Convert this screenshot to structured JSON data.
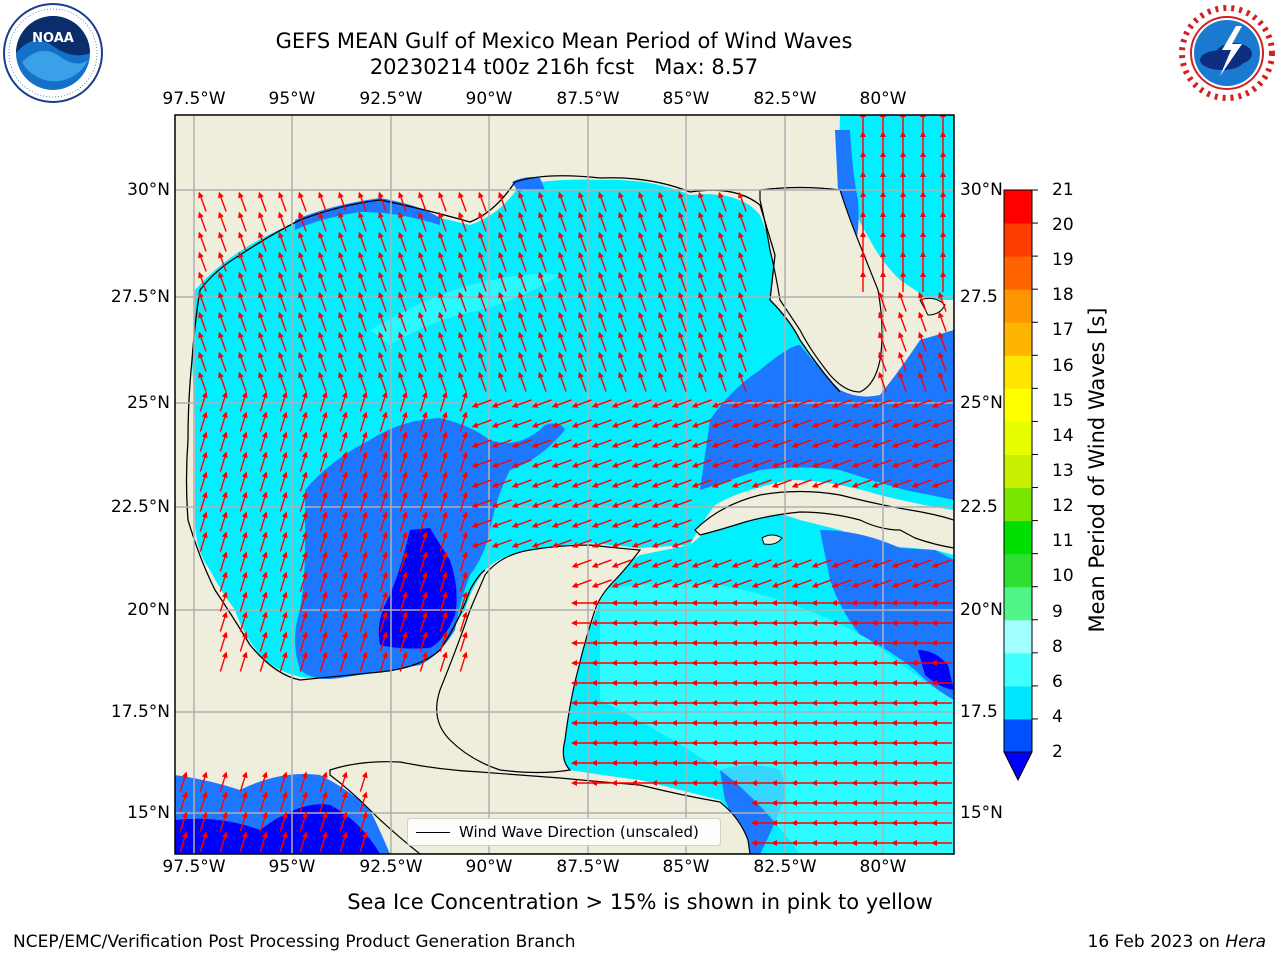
{
  "header": {
    "title_line1": "GEFS MEAN Gulf of Mexico Mean Period of Wind Waves",
    "title_line2": "20230214 t00z 216h fcst   Max: 8.57"
  },
  "logos": {
    "noaa_text": "NOAA",
    "noaa_ring_text": "NATIONAL OCEANIC AND ATMOSPHERIC ADMINISTRATION · U.S. DEPARTMENT OF COMMERCE",
    "nws_ring_text": "NATIONAL WEATHER SERVICE"
  },
  "map": {
    "lon_ticks": [
      "97.5°W",
      "95°W",
      "92.5°W",
      "90°W",
      "87.5°W",
      "85°W",
      "82.5°W",
      "80°W"
    ],
    "lat_ticks_left": [
      "30°N",
      "27.5°N",
      "25°N",
      "22.5°N",
      "20°N",
      "17.5°N",
      "15°N"
    ],
    "lat_ticks_right": [
      "30°N",
      "27.5",
      "25°N",
      "22.5",
      "20°N",
      "17.5",
      "15°N"
    ],
    "legend_label": "Wind Wave Direction (unscaled)",
    "colors": {
      "land": "#efeddc",
      "grid": "#b0b0b0",
      "arrow": "#ff0000",
      "coast": "#000000"
    }
  },
  "colorbar": {
    "label": "Mean Period of Wind Waves [s]",
    "ticks": [
      "21",
      "20",
      "19",
      "18",
      "17",
      "16",
      "15",
      "14",
      "13",
      "12",
      "11",
      "10",
      "9",
      "8",
      "6",
      "4",
      "2"
    ],
    "colors_bottom_to_top": [
      "#0050ff",
      "#00e6ff",
      "#40ffff",
      "#a0ffff",
      "#50f58a",
      "#30e030",
      "#00e000",
      "#7ae600",
      "#c8f000",
      "#e6ff00",
      "#ffff00",
      "#ffe600",
      "#ffb400",
      "#ff9600",
      "#ff6400",
      "#ff3c00",
      "#ff0000"
    ],
    "under_color": "#0000ff"
  },
  "footer": {
    "note": "Sea Ice Concentration > 15% is shown in pink to yellow",
    "credit": "NCEP/EMC/Verification Post Processing Product Generation Branch",
    "date": "16 Feb 2023 on ",
    "machine": "Hera"
  }
}
